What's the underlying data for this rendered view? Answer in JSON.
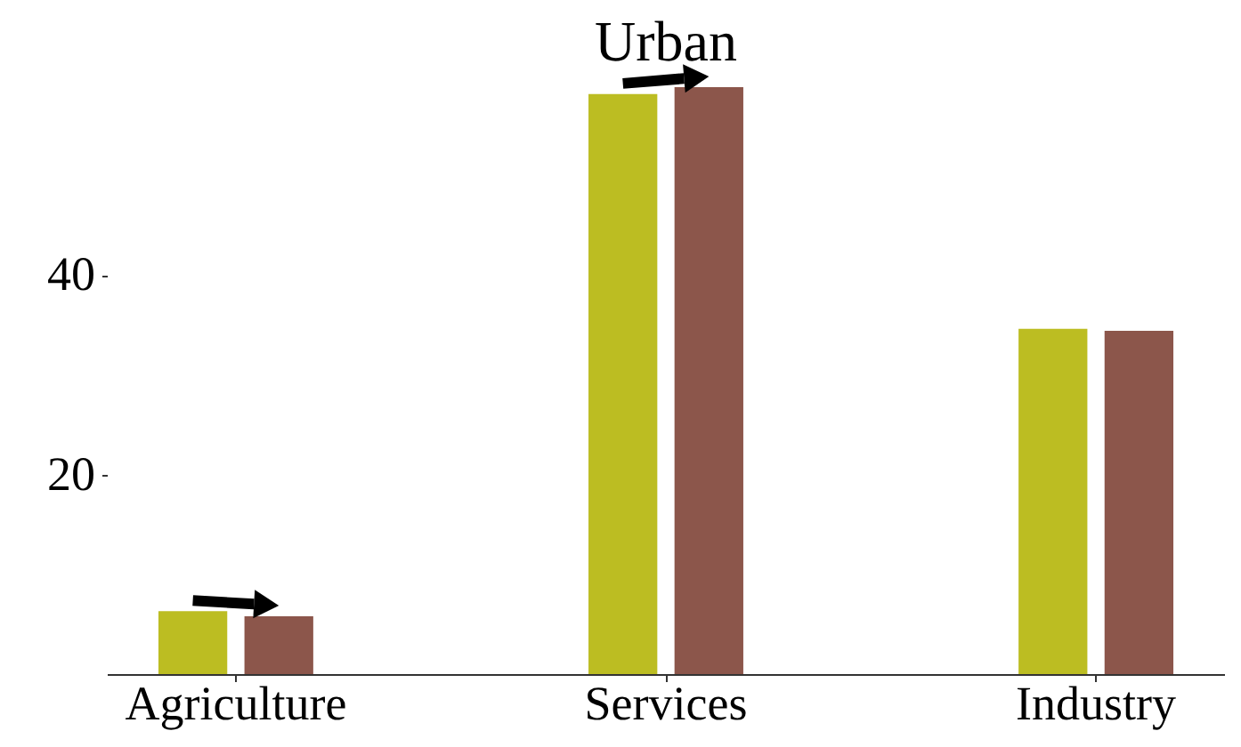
{
  "chart_data": {
    "type": "bar",
    "title": "Urban",
    "categories": [
      "Agriculture",
      "Services",
      "Industry"
    ],
    "series": [
      {
        "color": "#bcbd22",
        "values": [
          6.3,
          58.1,
          34.6
        ]
      },
      {
        "color": "#8c564b",
        "values": [
          5.8,
          58.8,
          34.4
        ]
      }
    ],
    "ylim": [
      0,
      58.8
    ],
    "yticks": [
      20,
      40
    ],
    "grid": false,
    "legend": false
  }
}
